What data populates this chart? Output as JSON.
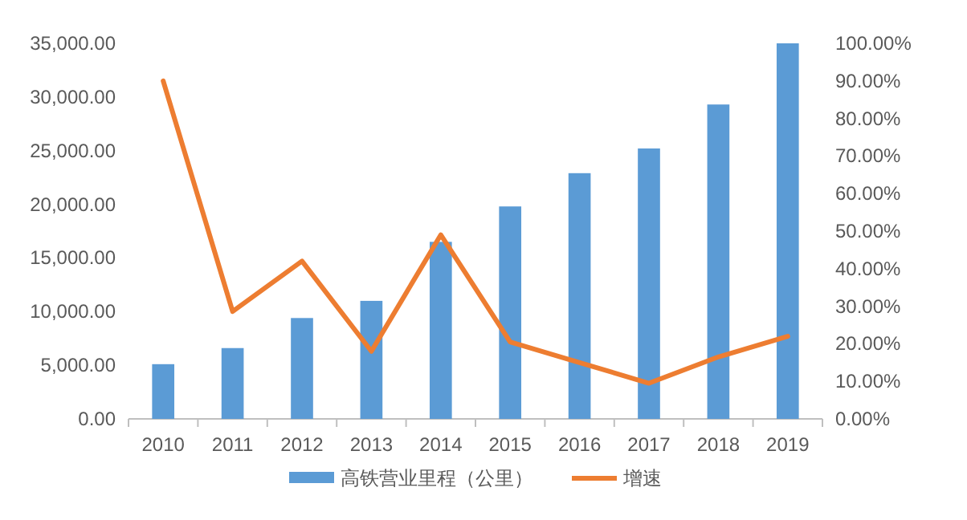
{
  "chart_data": {
    "type": "bar",
    "categories": [
      "2010",
      "2011",
      "2012",
      "2013",
      "2014",
      "2015",
      "2016",
      "2017",
      "2018",
      "2019"
    ],
    "series": [
      {
        "name": "高铁营业里程（公里）",
        "color": "#5b9bd5",
        "values": [
          5100,
          6600,
          9400,
          11000,
          16500,
          19800,
          22900,
          25200,
          29300,
          35000
        ]
      },
      {
        "name": "增速",
        "type": "line",
        "axis": "y2",
        "color": "#ed7d31",
        "values": [
          90,
          28.6,
          42,
          18,
          49,
          20.5,
          15,
          9.5,
          16.5,
          22
        ]
      }
    ],
    "ylim": [
      0,
      35000
    ],
    "yticks": [
      {
        "value": 0,
        "label": "0.00"
      },
      {
        "value": 5000,
        "label": "5,000.00"
      },
      {
        "value": 10000,
        "label": "10,000.00"
      },
      {
        "value": 15000,
        "label": "15,000.00"
      },
      {
        "value": 20000,
        "label": "20,000.00"
      },
      {
        "value": 25000,
        "label": "25,000.00"
      },
      {
        "value": 30000,
        "label": "30,000.00"
      },
      {
        "value": 35000,
        "label": "35,000.00"
      }
    ],
    "y2lim": [
      0,
      100
    ],
    "y2ticks": [
      {
        "value": 0,
        "label": "0.00%"
      },
      {
        "value": 10,
        "label": "10.00%"
      },
      {
        "value": 20,
        "label": "20.00%"
      },
      {
        "value": 30,
        "label": "30.00%"
      },
      {
        "value": 40,
        "label": "40.00%"
      },
      {
        "value": 50,
        "label": "50.00%"
      },
      {
        "value": 60,
        "label": "60.00%"
      },
      {
        "value": 70,
        "label": "70.00%"
      },
      {
        "value": 80,
        "label": "80.00%"
      },
      {
        "value": 90,
        "label": "90.00%"
      },
      {
        "value": 100,
        "label": "100.00%"
      }
    ],
    "legend": "bottom"
  }
}
